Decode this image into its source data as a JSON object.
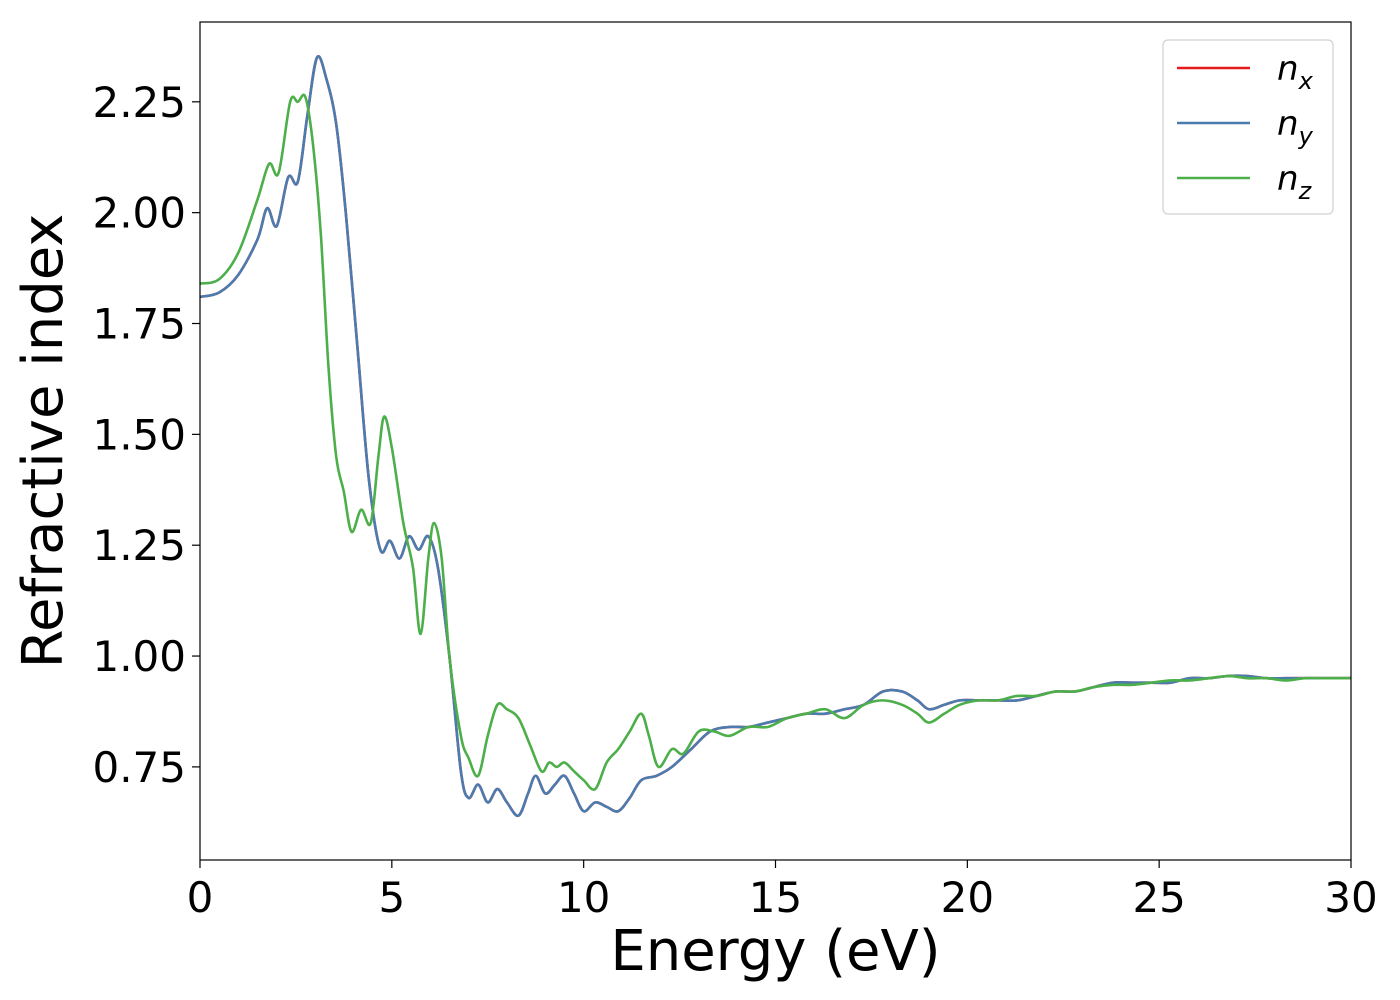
{
  "chart_data": {
    "type": "line",
    "title": "",
    "xlabel": "Energy (eV)",
    "ylabel": "Refractive index",
    "xlim": [
      0,
      30
    ],
    "ylim": [
      0.54,
      2.43
    ],
    "x_ticks": [
      0,
      5,
      10,
      15,
      20,
      25,
      30
    ],
    "x_tick_labels": [
      "0",
      "5",
      "10",
      "15",
      "20",
      "25",
      "30"
    ],
    "y_ticks": [
      0.75,
      1.0,
      1.25,
      1.5,
      1.75,
      2.0,
      2.25
    ],
    "y_tick_labels": [
      "0.75",
      "1.00",
      "1.25",
      "1.50",
      "1.75",
      "2.00",
      "2.25"
    ],
    "grid": false,
    "legend_position": "top-right",
    "series": [
      {
        "name": "n_x",
        "legend_base": "n",
        "legend_sub": "x",
        "color": "#e41a1c",
        "points": [
          [
            0,
            1.81
          ],
          [
            0.5,
            1.82
          ],
          [
            1.0,
            1.86
          ],
          [
            1.5,
            1.94
          ],
          [
            1.75,
            2.01
          ],
          [
            2.0,
            1.97
          ],
          [
            2.3,
            2.08
          ],
          [
            2.55,
            2.07
          ],
          [
            2.8,
            2.22
          ],
          [
            3.05,
            2.35
          ],
          [
            3.3,
            2.3
          ],
          [
            3.55,
            2.2
          ],
          [
            3.8,
            2.0
          ],
          [
            4.1,
            1.7
          ],
          [
            4.4,
            1.4
          ],
          [
            4.7,
            1.24
          ],
          [
            4.95,
            1.26
          ],
          [
            5.2,
            1.22
          ],
          [
            5.45,
            1.27
          ],
          [
            5.7,
            1.24
          ],
          [
            5.95,
            1.27
          ],
          [
            6.2,
            1.2
          ],
          [
            6.5,
            1.0
          ],
          [
            6.8,
            0.74
          ],
          [
            7.0,
            0.68
          ],
          [
            7.25,
            0.71
          ],
          [
            7.5,
            0.67
          ],
          [
            7.75,
            0.7
          ],
          [
            8.0,
            0.67
          ],
          [
            8.3,
            0.64
          ],
          [
            8.55,
            0.69
          ],
          [
            8.75,
            0.73
          ],
          [
            9.0,
            0.69
          ],
          [
            9.25,
            0.71
          ],
          [
            9.5,
            0.73
          ],
          [
            9.75,
            0.69
          ],
          [
            10.0,
            0.65
          ],
          [
            10.3,
            0.67
          ],
          [
            10.6,
            0.66
          ],
          [
            10.9,
            0.65
          ],
          [
            11.2,
            0.68
          ],
          [
            11.5,
            0.72
          ],
          [
            11.9,
            0.73
          ],
          [
            12.3,
            0.75
          ],
          [
            12.8,
            0.79
          ],
          [
            13.3,
            0.83
          ],
          [
            13.8,
            0.84
          ],
          [
            14.3,
            0.84
          ],
          [
            14.8,
            0.85
          ],
          [
            15.3,
            0.86
          ],
          [
            15.8,
            0.87
          ],
          [
            16.3,
            0.87
          ],
          [
            16.8,
            0.88
          ],
          [
            17.3,
            0.89
          ],
          [
            17.8,
            0.92
          ],
          [
            18.3,
            0.92
          ],
          [
            18.7,
            0.9
          ],
          [
            19.0,
            0.88
          ],
          [
            19.4,
            0.89
          ],
          [
            19.8,
            0.9
          ],
          [
            20.3,
            0.9
          ],
          [
            20.8,
            0.9
          ],
          [
            21.3,
            0.9
          ],
          [
            21.8,
            0.91
          ],
          [
            22.3,
            0.92
          ],
          [
            22.8,
            0.92
          ],
          [
            23.3,
            0.93
          ],
          [
            23.8,
            0.94
          ],
          [
            24.3,
            0.94
          ],
          [
            24.8,
            0.94
          ],
          [
            25.3,
            0.94
          ],
          [
            25.8,
            0.95
          ],
          [
            26.3,
            0.95
          ],
          [
            26.8,
            0.955
          ],
          [
            27.3,
            0.955
          ],
          [
            27.8,
            0.95
          ],
          [
            28.3,
            0.95
          ],
          [
            28.8,
            0.95
          ],
          [
            29.3,
            0.95
          ],
          [
            30.0,
            0.95
          ]
        ]
      },
      {
        "name": "n_y",
        "legend_base": "n",
        "legend_sub": "y",
        "color": "#4a7cb0",
        "points": [
          [
            0,
            1.81
          ],
          [
            0.5,
            1.82
          ],
          [
            1.0,
            1.86
          ],
          [
            1.5,
            1.94
          ],
          [
            1.75,
            2.01
          ],
          [
            2.0,
            1.97
          ],
          [
            2.3,
            2.08
          ],
          [
            2.55,
            2.07
          ],
          [
            2.8,
            2.22
          ],
          [
            3.05,
            2.35
          ],
          [
            3.3,
            2.3
          ],
          [
            3.55,
            2.2
          ],
          [
            3.8,
            2.0
          ],
          [
            4.1,
            1.7
          ],
          [
            4.4,
            1.4
          ],
          [
            4.7,
            1.24
          ],
          [
            4.95,
            1.26
          ],
          [
            5.2,
            1.22
          ],
          [
            5.45,
            1.27
          ],
          [
            5.7,
            1.24
          ],
          [
            5.95,
            1.27
          ],
          [
            6.2,
            1.2
          ],
          [
            6.5,
            1.0
          ],
          [
            6.8,
            0.74
          ],
          [
            7.0,
            0.68
          ],
          [
            7.25,
            0.71
          ],
          [
            7.5,
            0.67
          ],
          [
            7.75,
            0.7
          ],
          [
            8.0,
            0.67
          ],
          [
            8.3,
            0.64
          ],
          [
            8.55,
            0.69
          ],
          [
            8.75,
            0.73
          ],
          [
            9.0,
            0.69
          ],
          [
            9.25,
            0.71
          ],
          [
            9.5,
            0.73
          ],
          [
            9.75,
            0.69
          ],
          [
            10.0,
            0.65
          ],
          [
            10.3,
            0.67
          ],
          [
            10.6,
            0.66
          ],
          [
            10.9,
            0.65
          ],
          [
            11.2,
            0.68
          ],
          [
            11.5,
            0.72
          ],
          [
            11.9,
            0.73
          ],
          [
            12.3,
            0.75
          ],
          [
            12.8,
            0.79
          ],
          [
            13.3,
            0.83
          ],
          [
            13.8,
            0.84
          ],
          [
            14.3,
            0.84
          ],
          [
            14.8,
            0.85
          ],
          [
            15.3,
            0.86
          ],
          [
            15.8,
            0.87
          ],
          [
            16.3,
            0.87
          ],
          [
            16.8,
            0.88
          ],
          [
            17.3,
            0.89
          ],
          [
            17.8,
            0.92
          ],
          [
            18.3,
            0.92
          ],
          [
            18.7,
            0.9
          ],
          [
            19.0,
            0.88
          ],
          [
            19.4,
            0.89
          ],
          [
            19.8,
            0.9
          ],
          [
            20.3,
            0.9
          ],
          [
            20.8,
            0.9
          ],
          [
            21.3,
            0.9
          ],
          [
            21.8,
            0.91
          ],
          [
            22.3,
            0.92
          ],
          [
            22.8,
            0.92
          ],
          [
            23.3,
            0.93
          ],
          [
            23.8,
            0.94
          ],
          [
            24.3,
            0.94
          ],
          [
            24.8,
            0.94
          ],
          [
            25.3,
            0.94
          ],
          [
            25.8,
            0.95
          ],
          [
            26.3,
            0.95
          ],
          [
            26.8,
            0.955
          ],
          [
            27.3,
            0.955
          ],
          [
            27.8,
            0.95
          ],
          [
            28.3,
            0.95
          ],
          [
            28.8,
            0.95
          ],
          [
            29.3,
            0.95
          ],
          [
            30.0,
            0.95
          ]
        ]
      },
      {
        "name": "n_z",
        "legend_base": "n",
        "legend_sub": "z",
        "color": "#4daf4a",
        "points": [
          [
            0,
            1.84
          ],
          [
            0.5,
            1.85
          ],
          [
            1.0,
            1.91
          ],
          [
            1.5,
            2.03
          ],
          [
            1.8,
            2.11
          ],
          [
            2.05,
            2.09
          ],
          [
            2.35,
            2.25
          ],
          [
            2.55,
            2.25
          ],
          [
            2.75,
            2.26
          ],
          [
            2.95,
            2.15
          ],
          [
            3.15,
            1.95
          ],
          [
            3.35,
            1.65
          ],
          [
            3.55,
            1.45
          ],
          [
            3.75,
            1.37
          ],
          [
            3.95,
            1.28
          ],
          [
            4.2,
            1.33
          ],
          [
            4.45,
            1.3
          ],
          [
            4.65,
            1.45
          ],
          [
            4.8,
            1.54
          ],
          [
            5.0,
            1.47
          ],
          [
            5.3,
            1.3
          ],
          [
            5.55,
            1.2
          ],
          [
            5.75,
            1.05
          ],
          [
            5.95,
            1.22
          ],
          [
            6.1,
            1.3
          ],
          [
            6.3,
            1.22
          ],
          [
            6.5,
            1.0
          ],
          [
            6.8,
            0.82
          ],
          [
            7.0,
            0.77
          ],
          [
            7.25,
            0.73
          ],
          [
            7.5,
            0.82
          ],
          [
            7.75,
            0.89
          ],
          [
            8.0,
            0.88
          ],
          [
            8.3,
            0.86
          ],
          [
            8.6,
            0.8
          ],
          [
            8.9,
            0.74
          ],
          [
            9.1,
            0.76
          ],
          [
            9.3,
            0.75
          ],
          [
            9.5,
            0.76
          ],
          [
            9.75,
            0.74
          ],
          [
            10.0,
            0.72
          ],
          [
            10.3,
            0.7
          ],
          [
            10.6,
            0.76
          ],
          [
            10.9,
            0.79
          ],
          [
            11.2,
            0.83
          ],
          [
            11.5,
            0.87
          ],
          [
            11.7,
            0.82
          ],
          [
            11.95,
            0.75
          ],
          [
            12.3,
            0.79
          ],
          [
            12.6,
            0.78
          ],
          [
            13.0,
            0.83
          ],
          [
            13.4,
            0.83
          ],
          [
            13.8,
            0.82
          ],
          [
            14.3,
            0.84
          ],
          [
            14.8,
            0.84
          ],
          [
            15.3,
            0.86
          ],
          [
            15.8,
            0.87
          ],
          [
            16.3,
            0.88
          ],
          [
            16.8,
            0.86
          ],
          [
            17.3,
            0.89
          ],
          [
            17.8,
            0.9
          ],
          [
            18.3,
            0.89
          ],
          [
            18.7,
            0.87
          ],
          [
            19.0,
            0.85
          ],
          [
            19.4,
            0.87
          ],
          [
            19.8,
            0.89
          ],
          [
            20.3,
            0.9
          ],
          [
            20.8,
            0.9
          ],
          [
            21.3,
            0.91
          ],
          [
            21.8,
            0.91
          ],
          [
            22.3,
            0.92
          ],
          [
            22.8,
            0.92
          ],
          [
            23.3,
            0.93
          ],
          [
            23.8,
            0.935
          ],
          [
            24.3,
            0.935
          ],
          [
            24.8,
            0.94
          ],
          [
            25.3,
            0.945
          ],
          [
            25.8,
            0.945
          ],
          [
            26.3,
            0.95
          ],
          [
            26.8,
            0.955
          ],
          [
            27.3,
            0.95
          ],
          [
            27.8,
            0.95
          ],
          [
            28.3,
            0.945
          ],
          [
            28.8,
            0.95
          ],
          [
            29.3,
            0.95
          ],
          [
            30.0,
            0.95
          ]
        ]
      }
    ]
  }
}
